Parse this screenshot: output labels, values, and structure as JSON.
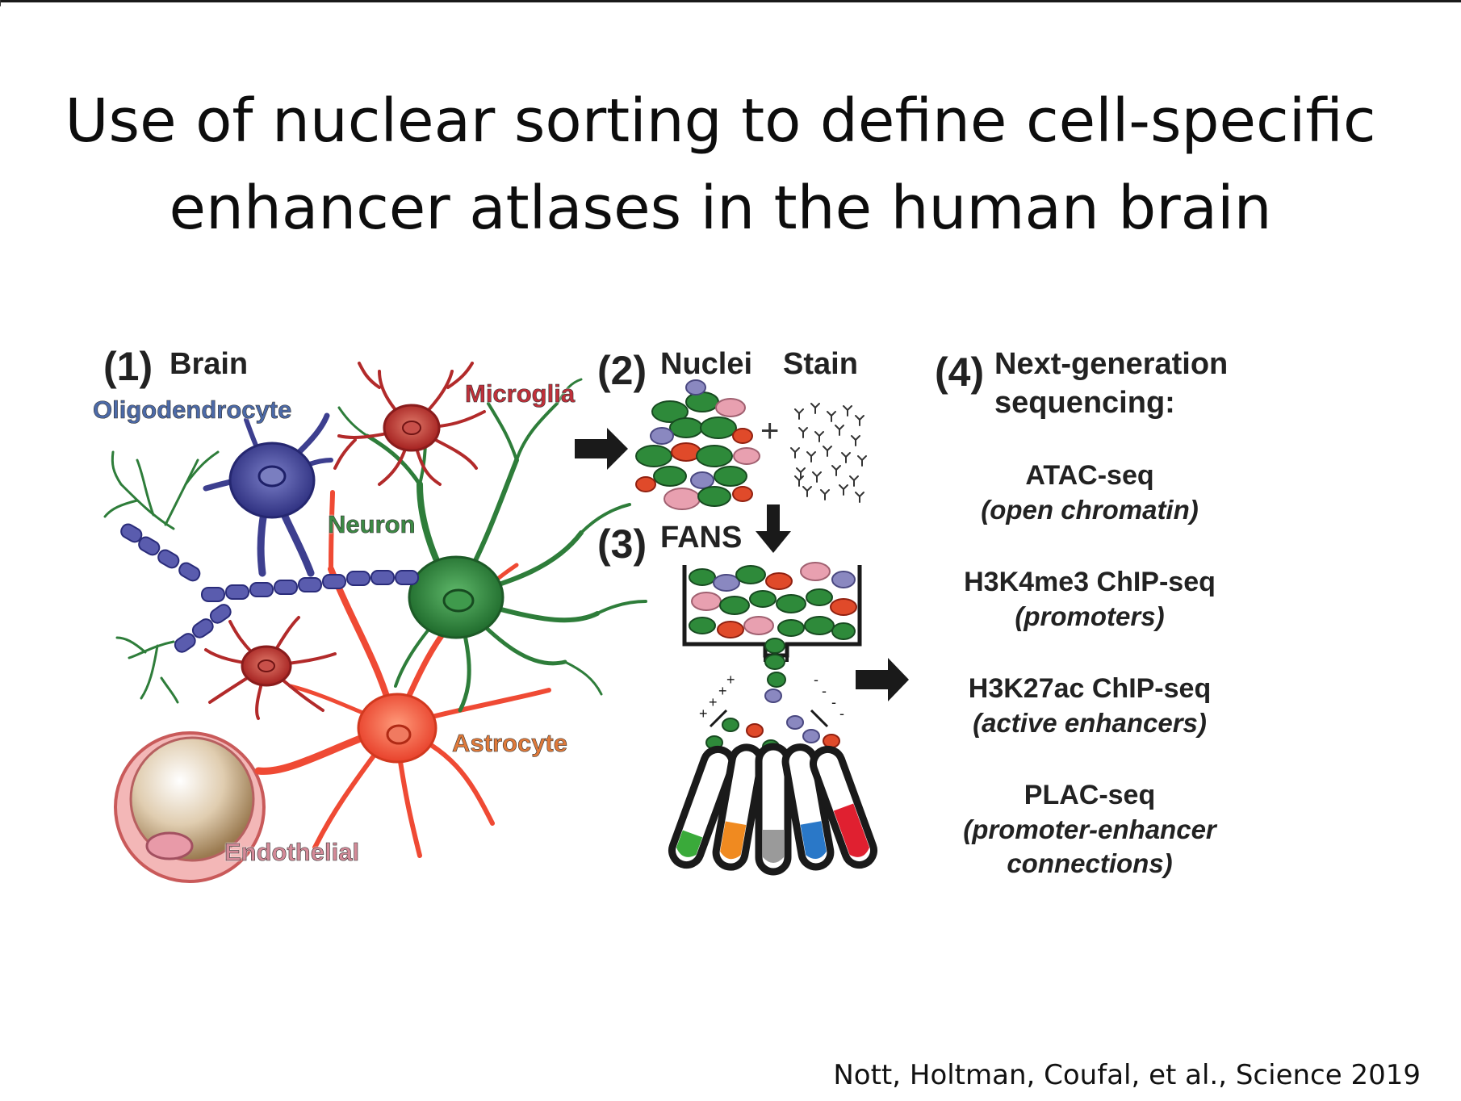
{
  "title": {
    "line1": "Use of nuclear sorting to define cell-specific",
    "line2": "enhancer atlases in the human brain"
  },
  "citation": "Nott, Holtman, Coufal, et al., Science 2019",
  "step1": {
    "number": "(1)",
    "label": "Brain"
  },
  "cell_types": {
    "oligodendrocyte": "Oligodendrocyte",
    "microglia": "Microglia",
    "neuron": "Neuron",
    "astrocyte": "Astrocyte",
    "endothelial": "Endothelial"
  },
  "step2": {
    "number": "(2)",
    "label_nuclei": "Nuclei",
    "label_stain": "Stain",
    "plus": "+"
  },
  "step3": {
    "number": "(3)",
    "label": "FANS"
  },
  "step4": {
    "number": "(4)",
    "label_line1": "Next-generation",
    "label_line2": "sequencing:",
    "methods": [
      {
        "name": "ATAC-seq",
        "desc": "(open chromatin)"
      },
      {
        "name": "H3K4me3 ChIP-seq",
        "desc": "(promoters)"
      },
      {
        "name": "H3K27ac ChIP-seq",
        "desc": "(active enhancers)"
      },
      {
        "name": "PLAC-seq",
        "desc": "(promoter-enhancer",
        "desc2": "connections)"
      }
    ]
  },
  "colors": {
    "oligodendrocyte": "#3d3f8f",
    "microglia": "#b22a2a",
    "neuron": "#2e7d3a",
    "astrocyte": "#f0503a",
    "endothelial": "#d9909a",
    "tube_colors": [
      "#3aaa3a",
      "#f08a20",
      "#9a9a9a",
      "#2a78c8",
      "#e02030"
    ]
  }
}
